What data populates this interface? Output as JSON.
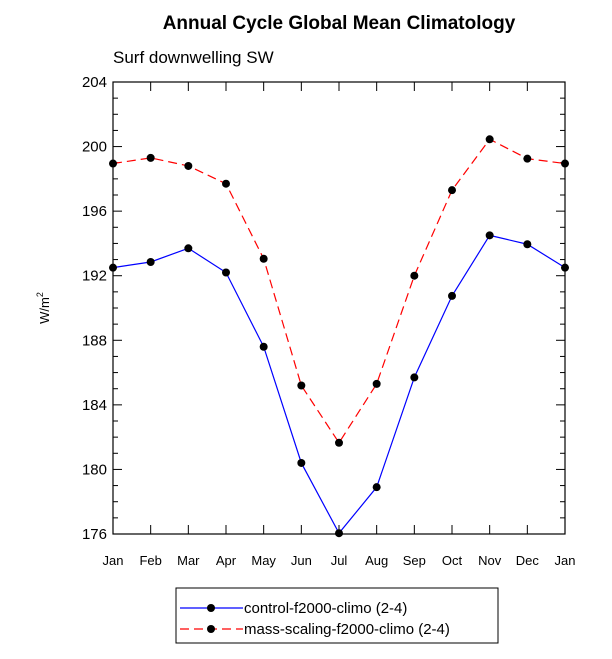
{
  "chart_data": {
    "type": "line",
    "title": "Annual Cycle Global Mean Climatology",
    "subtitle": "Surf downwelling SW",
    "ylabel": "W/m",
    "ylabel_sup": "2",
    "xlabel": "",
    "categories": [
      "Jan",
      "Feb",
      "Mar",
      "Apr",
      "May",
      "Jun",
      "Jul",
      "Aug",
      "Sep",
      "Oct",
      "Nov",
      "Dec",
      "Jan"
    ],
    "ylim": [
      176,
      204
    ],
    "yticks": [
      176,
      180,
      184,
      188,
      192,
      196,
      200,
      204
    ],
    "ytick_labels": [
      "176",
      "180",
      "184",
      "188",
      "192",
      "196",
      "200",
      "204"
    ],
    "series": [
      {
        "name": "control-f2000-climo (2-4)",
        "color": "#0000ff",
        "dash": "solid",
        "values": [
          192.5,
          192.85,
          193.7,
          192.2,
          187.6,
          180.4,
          176.05,
          178.9,
          185.7,
          190.75,
          194.5,
          193.95,
          192.5
        ]
      },
      {
        "name": "mass-scaling-f2000-climo (2-4)",
        "color": "#ff0000",
        "dash": "dashed",
        "values": [
          198.95,
          199.3,
          198.8,
          197.7,
          193.05,
          185.2,
          181.65,
          185.3,
          192.0,
          197.3,
          200.45,
          199.25,
          198.95
        ]
      }
    ],
    "legend_position": "bottom-center",
    "grid": false
  }
}
